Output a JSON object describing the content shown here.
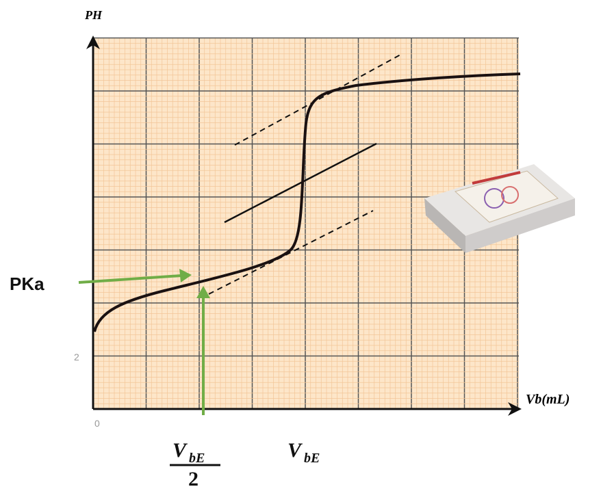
{
  "labels": {
    "y_axis": "PH",
    "x_axis": "Vb(mL)",
    "origin": "0",
    "tick": "2",
    "pka": "PKa",
    "half_equiv": {
      "symbol": "V",
      "subscript": "bE",
      "denominator": "2"
    },
    "equiv": {
      "symbol": "V",
      "subscript": "bE"
    }
  }
}
